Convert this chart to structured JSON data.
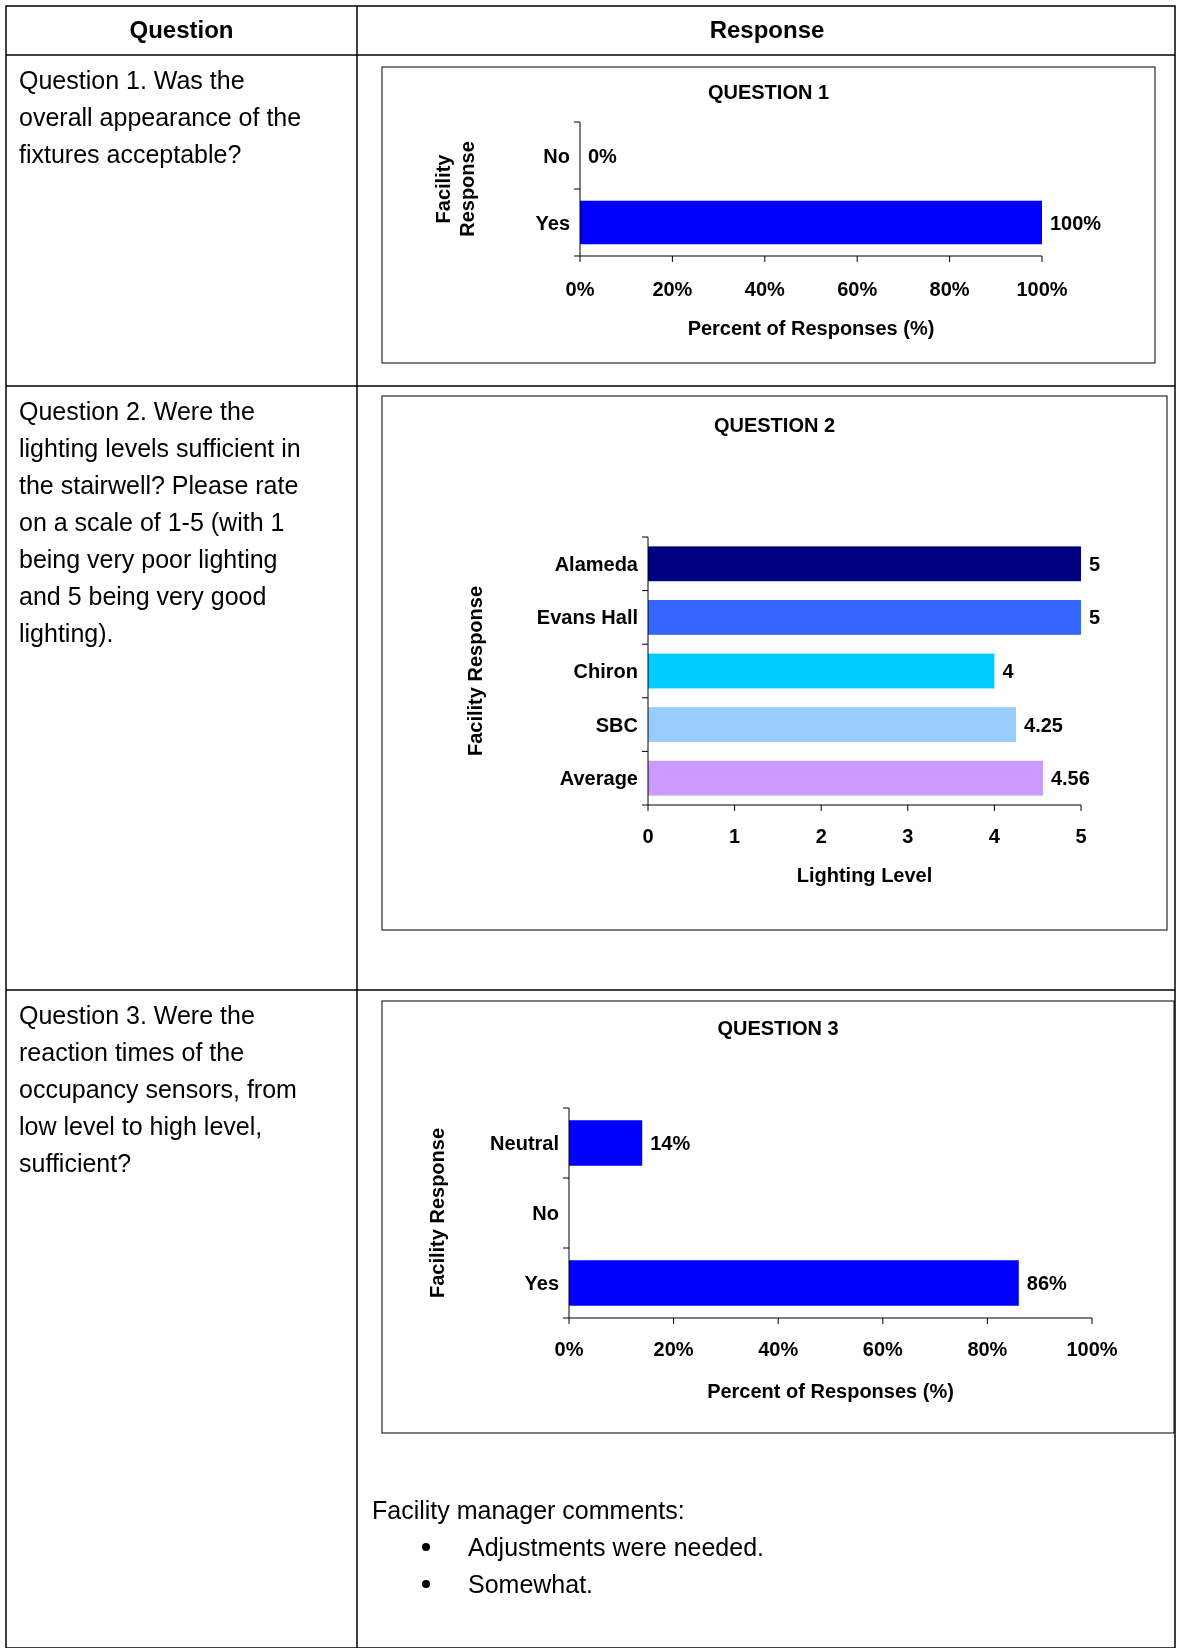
{
  "chart_data": [
    {
      "type": "bar",
      "orientation": "horizontal",
      "title": "QUESTION 1",
      "xlabel": "Percent of Responses (%)",
      "ylabel": "Facility Response",
      "categories": [
        "No",
        "Yes"
      ],
      "values": [
        0,
        100
      ],
      "colors": [
        "#0000ff",
        "#0000ff"
      ],
      "value_labels": [
        "0%",
        "100%"
      ],
      "xlim": [
        0,
        100
      ],
      "xticks": [
        {
          "value": 0,
          "label": "0%"
        },
        {
          "value": 20,
          "label": "20%"
        },
        {
          "value": 40,
          "label": "40%"
        },
        {
          "value": 60,
          "label": "60%"
        },
        {
          "value": 80,
          "label": "80%"
        },
        {
          "value": 100,
          "label": "100%"
        }
      ],
      "annotations": [
        "Question",
        "Response",
        "Question 1. Was the overall appearance of the fixtures acceptable?"
      ]
    },
    {
      "type": "bar",
      "orientation": "horizontal",
      "title": "QUESTION 2",
      "xlabel": "Lighting Level",
      "ylabel": "Facility Response",
      "categories": [
        "Alameda",
        "Evans Hall",
        "Chiron",
        "SBC",
        "Average"
      ],
      "values": [
        5,
        5,
        4,
        4.25,
        4.56
      ],
      "colors": [
        "#000080",
        "#3366ff",
        "#00ccff",
        "#99ccff",
        "#cc99ff"
      ],
      "data_labels": true,
      "xlim": [
        0,
        5
      ],
      "xticks": [
        0,
        1,
        2,
        3,
        4,
        5
      ],
      "annotations": [
        "Question 2. Were the lighting levels sufficient in the stairwell? Please rate on a scale of 1-5 (with 1 being very poor lighting and 5 being very good lighting)."
      ]
    },
    {
      "type": "bar",
      "orientation": "horizontal",
      "title": "QUESTION 3",
      "xlabel": "Percent of Responses (%)",
      "ylabel": "Facility Response",
      "categories": [
        "Neutral",
        "No",
        "Yes"
      ],
      "values": [
        14,
        0,
        86
      ],
      "colors": [
        "#0000ff",
        "#0000ff",
        "#0000ff"
      ],
      "value_labels": [
        "14%",
        null,
        "86%"
      ],
      "xlim": [
        0,
        100
      ],
      "xticks": [
        {
          "value": 0,
          "label": "0%"
        },
        {
          "value": 20,
          "label": "20%"
        },
        {
          "value": 40,
          "label": "40%"
        },
        {
          "value": 60,
          "label": "60%"
        },
        {
          "value": 80,
          "label": "80%"
        },
        {
          "value": 100,
          "label": "100%"
        }
      ],
      "annotations": [
        "Question 3. Were the reaction times of the occupancy sensors, from low level to high level, sufficient?",
        "Facility manager comments:",
        "Adjustments were needed.",
        "Somewhat."
      ]
    }
  ]
}
